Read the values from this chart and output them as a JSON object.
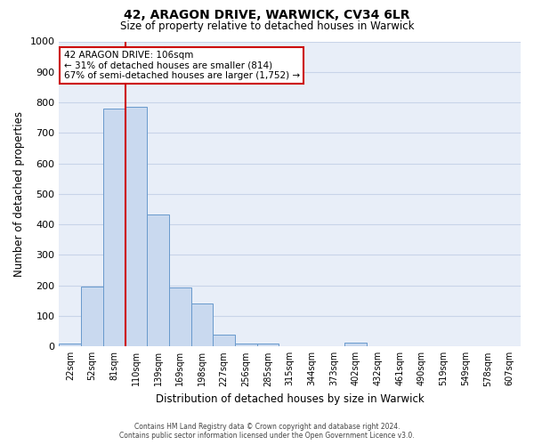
{
  "title": "42, ARAGON DRIVE, WARWICK, CV34 6LR",
  "subtitle": "Size of property relative to detached houses in Warwick",
  "xlabel": "Distribution of detached houses by size in Warwick",
  "ylabel": "Number of detached properties",
  "bin_labels": [
    "22sqm",
    "52sqm",
    "81sqm",
    "110sqm",
    "139sqm",
    "169sqm",
    "198sqm",
    "227sqm",
    "256sqm",
    "285sqm",
    "315sqm",
    "344sqm",
    "373sqm",
    "402sqm",
    "432sqm",
    "461sqm",
    "490sqm",
    "519sqm",
    "549sqm",
    "578sqm",
    "607sqm"
  ],
  "bar_heights": [
    10,
    195,
    780,
    785,
    433,
    192,
    140,
    40,
    10,
    10,
    0,
    0,
    0,
    12,
    0,
    0,
    0,
    0,
    0,
    0,
    0
  ],
  "bar_color": "#c9d9ef",
  "bar_edge_color": "#6899cc",
  "vline_color": "#cc0000",
  "ylim": [
    0,
    1000
  ],
  "yticks": [
    0,
    100,
    200,
    300,
    400,
    500,
    600,
    700,
    800,
    900,
    1000
  ],
  "annotation_title": "42 ARAGON DRIVE: 106sqm",
  "annotation_line1": "← 31% of detached houses are smaller (814)",
  "annotation_line2": "67% of semi-detached houses are larger (1,752) →",
  "annotation_box_color": "#ffffff",
  "annotation_box_edge": "#cc0000",
  "footer_line1": "Contains HM Land Registry data © Crown copyright and database right 2024.",
  "footer_line2": "Contains public sector information licensed under the Open Government Licence v3.0.",
  "grid_color": "#c8d4e8",
  "background_color": "#e8eef8"
}
